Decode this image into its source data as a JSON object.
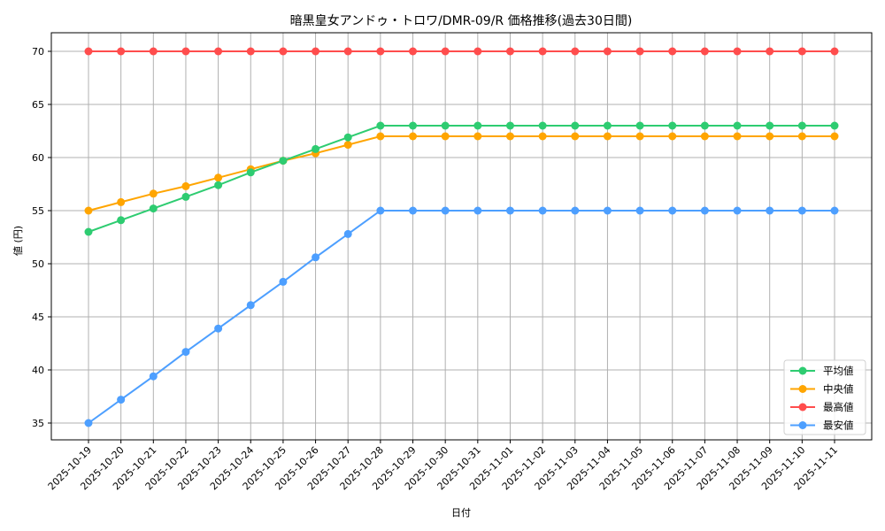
{
  "chart_data": {
    "type": "line",
    "title": "暗黒皇女アンドゥ・トロワ/DMR-09/R 価格推移(過去30日間)",
    "xlabel": "日付",
    "ylabel": "値 (円)",
    "ylim": [
      33.25,
      71.75
    ],
    "yticks": [
      35,
      40,
      45,
      50,
      55,
      60,
      65,
      70
    ],
    "grid": true,
    "legend_position": "lower right",
    "categories": [
      "2025-10-19",
      "2025-10-20",
      "2025-10-21",
      "2025-10-22",
      "2025-10-23",
      "2025-10-24",
      "2025-10-25",
      "2025-10-26",
      "2025-10-27",
      "2025-10-28",
      "2025-10-29",
      "2025-10-30",
      "2025-10-31",
      "2025-11-01",
      "2025-11-02",
      "2025-11-03",
      "2025-11-04",
      "2025-11-05",
      "2025-11-06",
      "2025-11-07",
      "2025-11-08",
      "2025-11-09",
      "2025-11-10",
      "2025-11-11"
    ],
    "series": [
      {
        "name": "平均値",
        "color": "#2ecc71",
        "values": [
          53.0,
          54.1,
          55.2,
          56.3,
          57.4,
          58.6,
          59.7,
          60.8,
          61.9,
          63.0,
          63,
          63,
          63,
          63,
          63,
          63,
          63,
          63,
          63,
          63,
          63,
          63,
          63,
          63
        ]
      },
      {
        "name": "中央値",
        "color": "#ffa500",
        "values": [
          55.0,
          55.8,
          56.6,
          57.3,
          58.1,
          58.9,
          59.7,
          60.4,
          61.2,
          62.0,
          62,
          62,
          62,
          62,
          62,
          62,
          62,
          62,
          62,
          62,
          62,
          62,
          62,
          62
        ]
      },
      {
        "name": "最高値",
        "color": "#ff4d4d",
        "values": [
          70,
          70,
          70,
          70,
          70,
          70,
          70,
          70,
          70,
          70,
          70,
          70,
          70,
          70,
          70,
          70,
          70,
          70,
          70,
          70,
          70,
          70,
          70,
          70
        ]
      },
      {
        "name": "最安値",
        "color": "#4d9fff",
        "values": [
          35.0,
          37.2,
          39.4,
          41.7,
          43.9,
          46.1,
          48.3,
          50.6,
          52.8,
          55.0,
          55,
          55,
          55,
          55,
          55,
          55,
          55,
          55,
          55,
          55,
          55,
          55,
          55,
          55
        ]
      }
    ]
  }
}
